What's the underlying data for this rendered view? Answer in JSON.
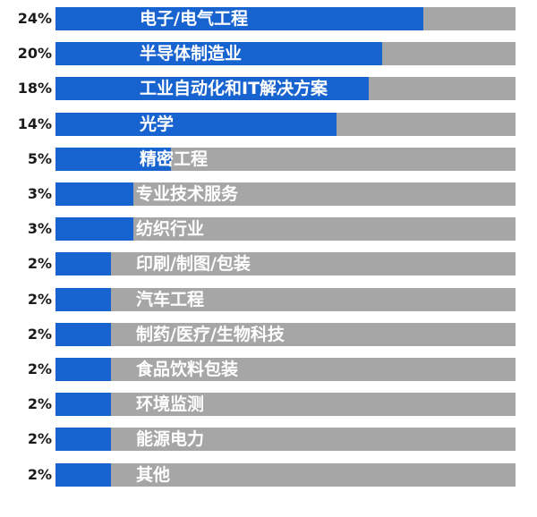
{
  "chart_data": {
    "type": "bar",
    "orientation": "horizontal",
    "categories": [
      "电子/电气工程",
      "半导体制造业",
      "工业自动化和IT解决方案",
      "光学",
      "精密工程",
      "专业技术服务",
      "纺织行业",
      "印刷/制图/包装",
      "汽车工程",
      "制药/医疗/生物科技",
      "食品饮料包装",
      "环境监测",
      "能源电力",
      "其他"
    ],
    "value_labels": [
      "24%",
      "20%",
      "18%",
      "14%",
      "5%",
      "3%",
      "3%",
      "2%",
      "2%",
      "2%",
      "2%",
      "2%",
      "2%",
      "2%"
    ],
    "values": [
      24,
      20,
      18,
      14,
      5,
      3,
      3,
      2,
      2,
      2,
      2,
      2,
      2,
      2
    ],
    "fill_fractions": [
      0.8,
      0.71,
      0.68,
      0.61,
      0.25,
      0.17,
      0.17,
      0.12,
      0.12,
      0.12,
      0.12,
      0.12,
      0.12,
      0.12
    ],
    "colors": {
      "bar": "#1763cf",
      "track": "#a6a6a6",
      "label": "#ffffff",
      "value_text": "#1a1a1a"
    },
    "grid": false,
    "legend": "none"
  }
}
